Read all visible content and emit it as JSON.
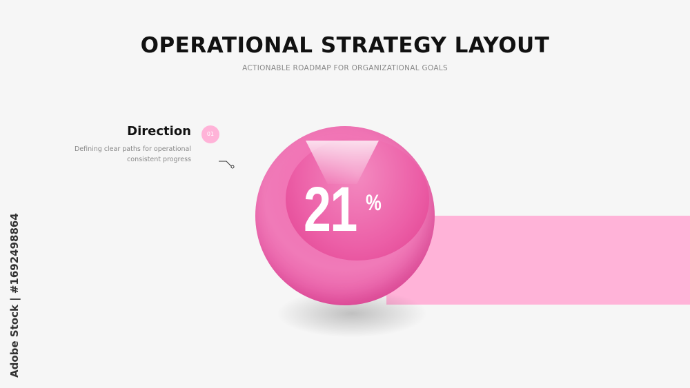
{
  "header": {
    "title": "OPERATIONAL STRATEGY LAYOUT",
    "subtitle": "ACTIONABLE ROADMAP FOR ORGANIZATIONAL GOALS"
  },
  "item": {
    "number": "01",
    "title": "Direction",
    "description_line1": "Defining clear paths for operational",
    "description_line2": "consistent progress",
    "value": "21",
    "unit": "%"
  },
  "colors": {
    "accent": "#ec5fa7",
    "band": "#ffb3d8",
    "badge": "#ffb3d8"
  },
  "watermark": {
    "text": "Adobe Stock",
    "side_text": "Adobe Stock | #1692498864"
  }
}
